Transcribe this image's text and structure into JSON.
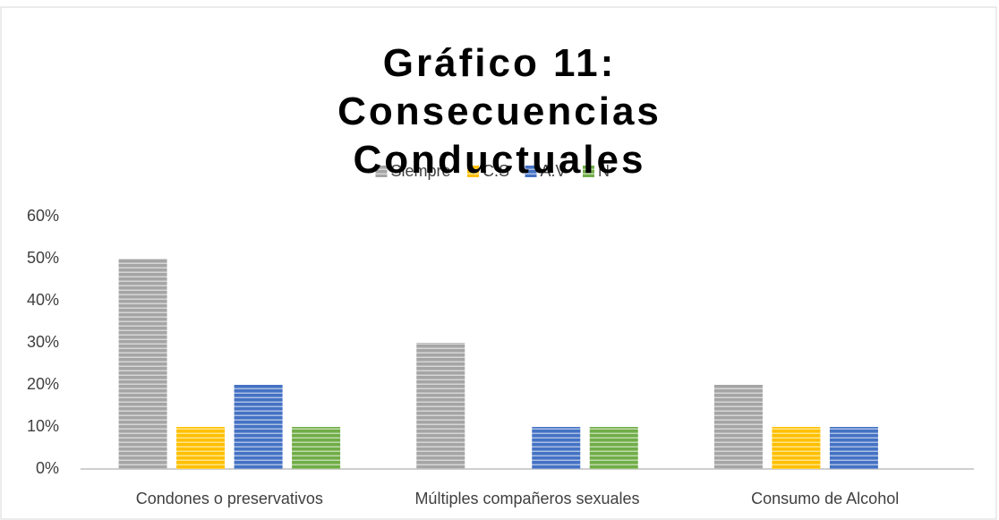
{
  "chart_data": {
    "type": "bar",
    "title": "Gráfico 11: Consecuencias Conductuales",
    "categories": [
      "Condones o preservativos",
      "Múltiples compañeros sexuales",
      "Consumo de Alcohol"
    ],
    "series": [
      {
        "name": "Siempre",
        "color": "#a5a5a5",
        "values": [
          50,
          30,
          20
        ]
      },
      {
        "name": "C.S",
        "color": "#ffc000",
        "values": [
          10,
          0,
          10
        ]
      },
      {
        "name": "A.V",
        "color": "#4472c4",
        "values": [
          20,
          10,
          10
        ]
      },
      {
        "name": "N",
        "color": "#70ad47",
        "values": [
          10,
          10,
          0
        ]
      }
    ],
    "ylim": [
      0,
      60
    ],
    "yticks": [
      {
        "value": 0,
        "label": "0%"
      },
      {
        "value": 10,
        "label": "10%"
      },
      {
        "value": 20,
        "label": "20%"
      },
      {
        "value": 30,
        "label": "30%"
      },
      {
        "value": 40,
        "label": "40%"
      },
      {
        "value": 50,
        "label": "50%"
      },
      {
        "value": 60,
        "label": "60%"
      }
    ],
    "grid": false,
    "legend": "top"
  }
}
